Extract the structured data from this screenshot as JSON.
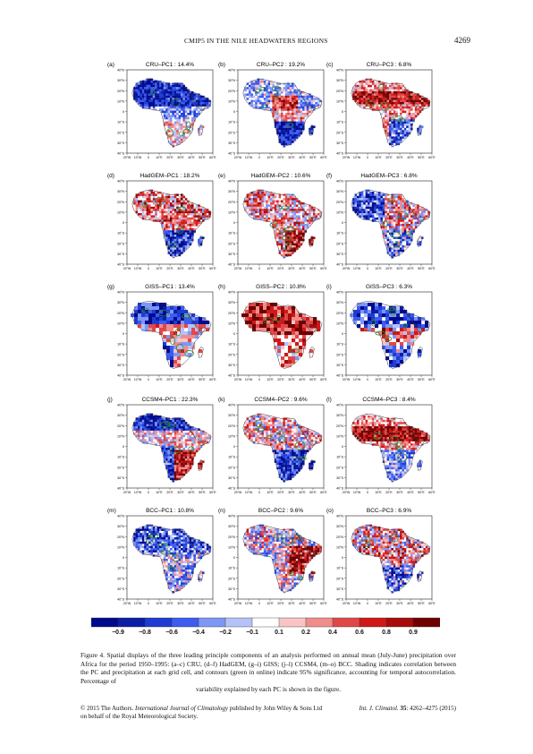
{
  "header": {
    "running_head": "CMIP5 IN THE NILE HEADWATERS REGIONS",
    "page_number": "4269"
  },
  "figure": {
    "lat_labels": [
      "40°N",
      "30°N",
      "20°N",
      "10°N",
      "0",
      "10°S",
      "20°S",
      "30°S",
      "40°S"
    ],
    "lon_labels": [
      "20°W",
      "10°W",
      "0",
      "10°E",
      "20°E",
      "30°E",
      "40°E",
      "50°E",
      "60°E"
    ],
    "panels": [
      {
        "letter": "(a)",
        "title": "CRU–PC1 : 14.4%",
        "pattern": "neg_north"
      },
      {
        "letter": "(b)",
        "title": "CRU–PC2 : 19.2%",
        "pattern": "south_neg"
      },
      {
        "letter": "(c)",
        "title": "CRU–PC3 : 6.8%",
        "pattern": "sahel_pos"
      },
      {
        "letter": "(d)",
        "title": "HadGEM–PC1 : 18.2%",
        "pattern": "south_neg_mix"
      },
      {
        "letter": "(e)",
        "title": "HadGEM–PC2 : 10.6%",
        "pattern": "pos_mix"
      },
      {
        "letter": "(f)",
        "title": "HadGEM–PC3 : 6.8%",
        "pattern": "west_neg"
      },
      {
        "letter": "(g)",
        "title": "GISS–PC1 : 13.4%",
        "pattern": "blocky_neg"
      },
      {
        "letter": "(h)",
        "title": "GISS–PC2 : 10.8%",
        "pattern": "blocky_pos"
      },
      {
        "letter": "(i)",
        "title": "GISS–PC3 : 6.3%",
        "pattern": "blocky_mix"
      },
      {
        "letter": "(j)",
        "title": "CCSM4–PC1 : 22.3%",
        "pattern": "ccsm_neg"
      },
      {
        "letter": "(k)",
        "title": "CCSM4–PC2 : 9.6%",
        "pattern": "ccsm_south"
      },
      {
        "letter": "(l)",
        "title": "CCSM4–PC3 : 8.4%",
        "pattern": "ccsm_pos"
      },
      {
        "letter": "(m)",
        "title": "BCC–PC1 : 10.8%",
        "pattern": "bcc_neg"
      },
      {
        "letter": "(n)",
        "title": "BCC–PC2 : 9.6%",
        "pattern": "bcc_east"
      },
      {
        "letter": "(o)",
        "title": "BCC–PC3 : 6.9%",
        "pattern": "bcc_mix"
      }
    ]
  },
  "colorbar": {
    "labels": [
      "−0.9",
      "−0.8",
      "−0.6",
      "−0.4",
      "−0.2",
      "−0.1",
      "0.1",
      "0.2",
      "0.4",
      "0.6",
      "0.8",
      "0.9"
    ],
    "colors": [
      "#000a8c",
      "#0a1ea6",
      "#1e3cd2",
      "#3c5cf0",
      "#7e96f4",
      "#b4c2f8",
      "#ffffff",
      "#f8c4c4",
      "#f08c8c",
      "#e04848",
      "#d01818",
      "#a80a0a",
      "#6e0000"
    ],
    "contour_color": "#2e8b3a"
  },
  "caption": {
    "text": "Figure 4. Spatial displays of the three leading principle components of an analysis performed on annual mean (July-June) precipitation over Africa for the period 1950–1995: (a–c) CRU, (d–f) HadGEM, (g–i) GISS; (j–l) CCSM4, (m–o) BCC. Shading indicates correlation between the PC and precipitation at each grid cell, and contours (green in online) indicate 95% significance, accounting for temporal autocorrelation. Percentage of",
    "last_line": "variability explained by each PC is shown in the figure."
  },
  "footer": {
    "copyright": "© 2015 The Authors.",
    "journal_name": "International Journal of Climatology",
    "publisher": "published by John Wiley & Sons Ltd",
    "society": "on behalf of the Royal Meteorological Society.",
    "citation_journal": "Int. J. Climatol.",
    "citation_volume": "35",
    "citation_pages": ": 4262–4275 (2015)"
  }
}
